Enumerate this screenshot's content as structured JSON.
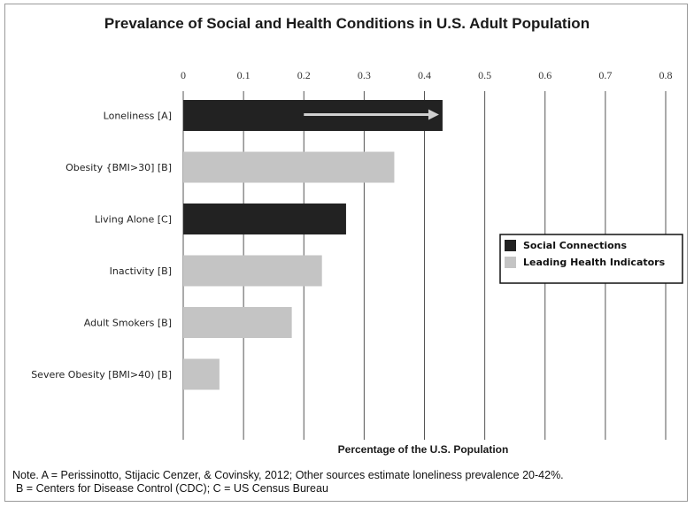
{
  "chart_data": {
    "type": "bar",
    "orientation": "horizontal",
    "title": "Prevalance of Social and Health Conditions in U.S. Adult Population",
    "xlabel": "Percentage of the U.S. Population",
    "xlim": [
      0,
      0.8
    ],
    "xticks": [
      "0",
      "0.1",
      "0.2",
      "0.3",
      "0.4",
      "0.5",
      "0.6",
      "0.7",
      "0.8"
    ],
    "grid": true,
    "legend_position": "right",
    "categories": [
      "Loneliness [A]",
      "Obesity {BMI>30] [B]",
      "Living Alone [C]",
      "Inactivity [B]",
      "Adult Smokers [B]",
      "Severe Obesity [BMI>40) [B]"
    ],
    "values": [
      0.43,
      0.35,
      0.27,
      0.23,
      0.18,
      0.06
    ],
    "groups": [
      "Social Connections",
      "Leading Health Indicators",
      "Social Connections",
      "Leading Health Indicators",
      "Leading Health Indicators",
      "Leading Health Indicators"
    ],
    "legend": [
      {
        "name": "Social Connections",
        "color": "#222222"
      },
      {
        "name": "Leading Health Indicators",
        "color": "#c4c4c4"
      }
    ],
    "annotation": {
      "type": "arrow",
      "x_from": 0.2,
      "x_to": 0.43,
      "category": "Loneliness [A]",
      "color": "#d0d0d0"
    }
  },
  "note": {
    "line1": "Note. A = Perissinotto, Stijacic Cenzer, & Covinsky, 2012; Other sources estimate loneliness prevalence 20-42%.",
    "line2": "B = Centers for Disease Control (CDC); C = US Census Bureau"
  }
}
